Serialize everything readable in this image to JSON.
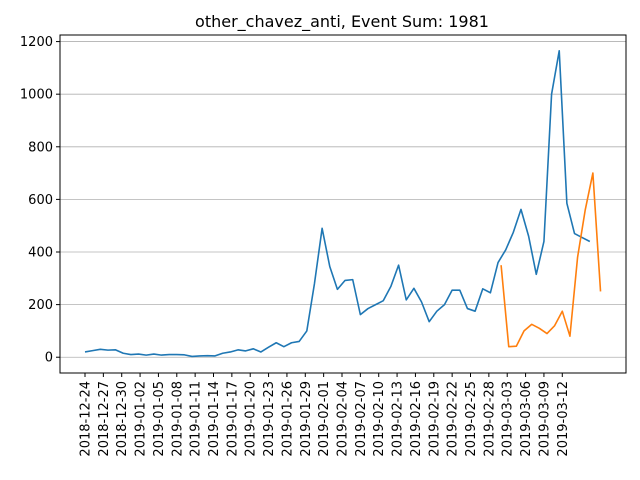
{
  "chart_data": {
    "type": "line",
    "title": "other_chavez_anti, Event Sum: 1981",
    "xlabel": "",
    "ylabel": "",
    "ylim": [
      -60,
      1225
    ],
    "yticks": [
      0,
      200,
      400,
      600,
      800,
      1000,
      1200
    ],
    "grid": "y",
    "x_start_date": "2018-12-24",
    "x_end_date": "2019-03-18",
    "xtick_labels": [
      "2018-12-24",
      "2018-12-27",
      "2018-12-30",
      "2019-01-02",
      "2019-01-05",
      "2019-01-08",
      "2019-01-11",
      "2019-01-14",
      "2019-01-17",
      "2019-01-20",
      "2019-01-23",
      "2019-01-26",
      "2019-01-29",
      "2019-02-01",
      "2019-02-04",
      "2019-02-07",
      "2019-02-10",
      "2019-02-13",
      "2019-02-16",
      "2019-02-19",
      "2019-02-22",
      "2019-02-25",
      "2019-02-28",
      "2019-03-03",
      "2019-03-06",
      "2019-03-09",
      "2019-03-12"
    ],
    "series": [
      {
        "color": "#1f77b4",
        "start_date": "2018-12-24",
        "values": [
          20,
          25,
          30,
          27,
          28,
          15,
          10,
          12,
          8,
          12,
          8,
          10,
          10,
          9,
          3,
          5,
          6,
          5,
          15,
          20,
          28,
          24,
          32,
          20,
          38,
          55,
          40,
          55,
          60,
          100,
          280,
          490,
          345,
          258,
          292,
          295,
          162,
          185,
          200,
          215,
          270,
          350,
          218,
          262,
          210,
          135,
          175,
          200,
          255,
          255,
          185,
          175,
          260,
          245,
          360,
          408,
          475,
          562,
          460,
          315,
          440,
          1000,
          1165,
          585,
          470,
          455,
          440
        ]
      },
      {
        "color": "#ff7f0e",
        "start_date": "2019-03-02",
        "values": [
          350,
          40,
          42,
          100,
          125,
          110,
          90,
          120,
          175,
          80,
          380,
          560,
          700,
          250
        ]
      }
    ]
  }
}
